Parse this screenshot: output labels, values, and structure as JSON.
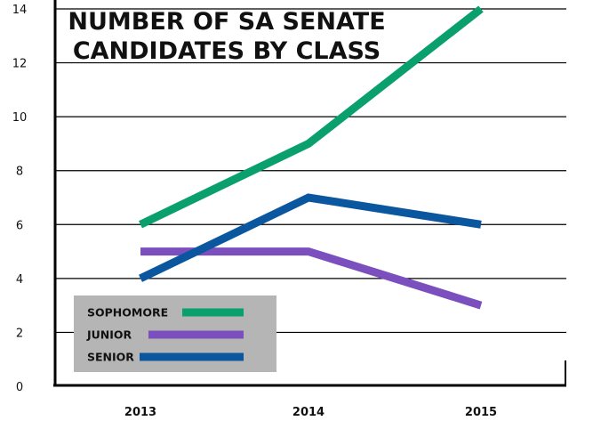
{
  "chart_data": {
    "type": "line",
    "title_lines": [
      "NUMBER OF SA SENATE",
      "CANDIDATES BY CLASS"
    ],
    "categories": [
      "2013",
      "2014",
      "2015"
    ],
    "y_ticks": [
      "0",
      "2",
      "4",
      "6",
      "8",
      "10",
      "12",
      "14"
    ],
    "ylim": [
      0,
      14
    ],
    "grid": true,
    "legend_position": "bottom-left",
    "series": [
      {
        "name": "SOPHOMORE",
        "color": "#0aa06e",
        "values": [
          6,
          9,
          14
        ]
      },
      {
        "name": "JUNIOR",
        "color": "#7b4fbe",
        "values": [
          5,
          5,
          3
        ]
      },
      {
        "name": "SENIOR",
        "color": "#0a57a0",
        "values": [
          4,
          7,
          6
        ]
      }
    ]
  }
}
